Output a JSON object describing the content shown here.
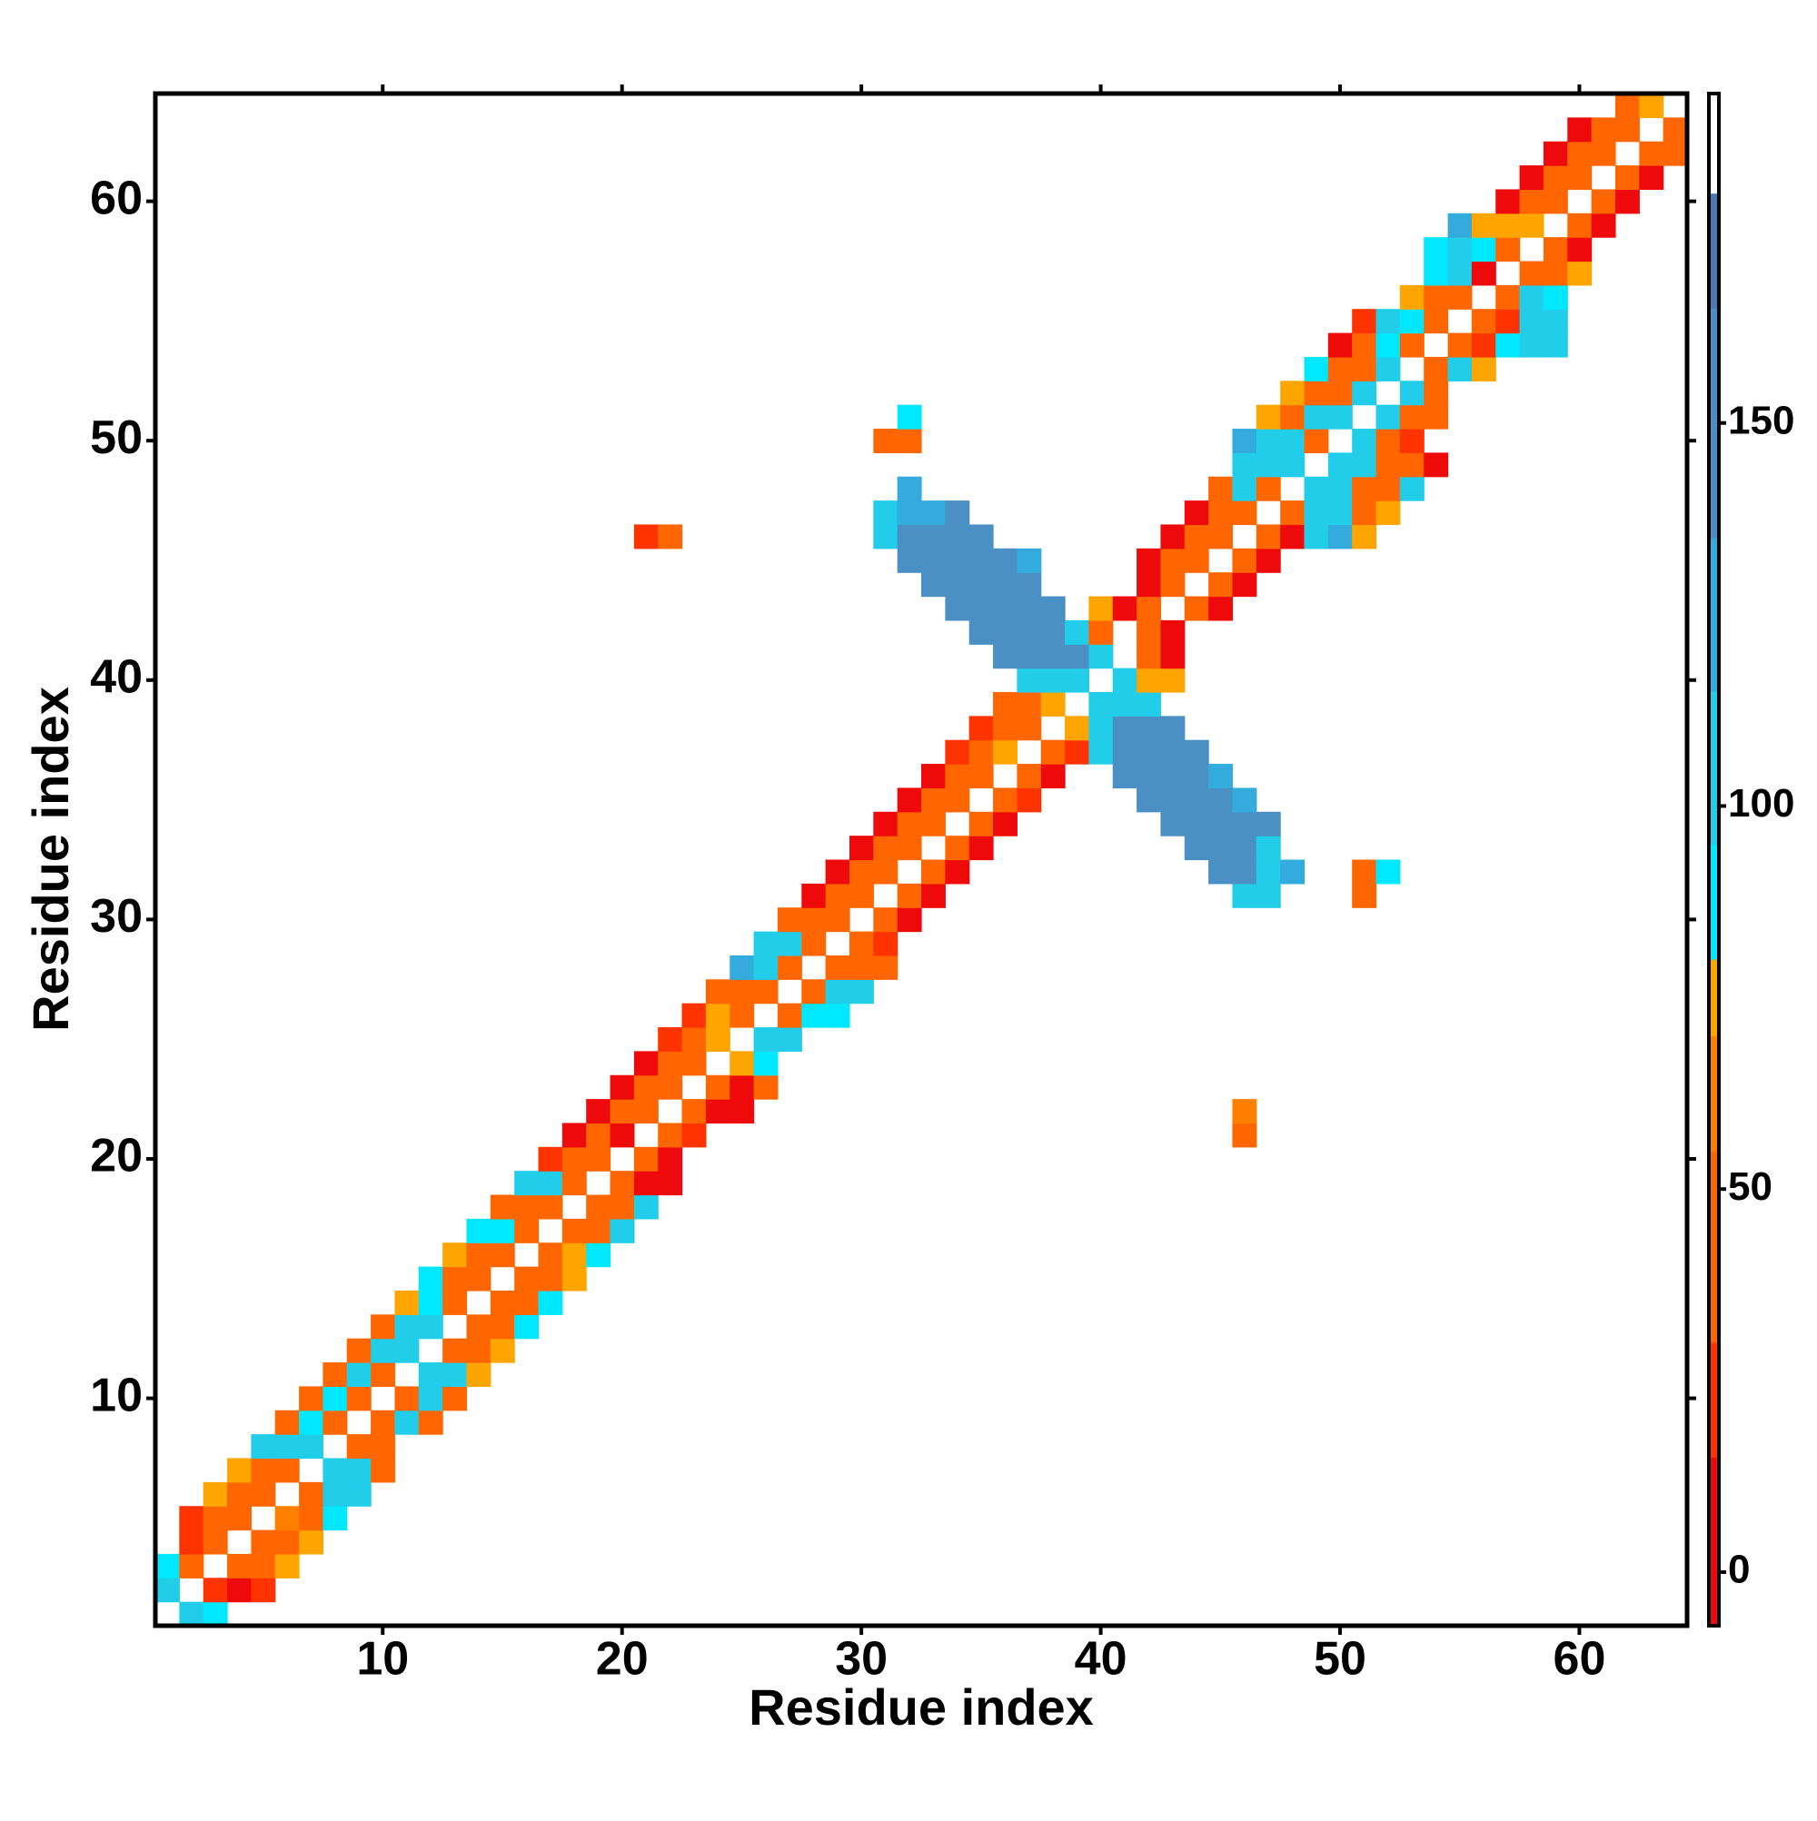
{
  "chart_data": {
    "type": "heatmap",
    "x_label": "Residue index",
    "y_label": "Residue index",
    "xlim": [
      0.5,
      64.5
    ],
    "ylim": [
      0.5,
      64.5
    ],
    "xticks": [
      10,
      20,
      30,
      40,
      50,
      60
    ],
    "yticks": [
      10,
      20,
      30,
      40,
      50,
      60
    ],
    "colorbar": {
      "lim": [
        -7,
        193
      ],
      "ticks": [
        0,
        50,
        100,
        150
      ],
      "bins": [
        {
          "from": -7,
          "to": 15,
          "color": "#ee0a0a"
        },
        {
          "from": 15,
          "to": 30,
          "color": "#ff3300"
        },
        {
          "from": 30,
          "to": 55,
          "color": "#ff6600"
        },
        {
          "from": 55,
          "to": 70,
          "color": "#ff8000"
        },
        {
          "from": 70,
          "to": 80,
          "color": "#ffa500"
        },
        {
          "from": 80,
          "to": 95,
          "color": "#00e8ff"
        },
        {
          "from": 95,
          "to": 115,
          "color": "#22cdea"
        },
        {
          "from": 115,
          "to": 135,
          "color": "#33abdc"
        },
        {
          "from": 135,
          "to": 165,
          "color": "#4a90c4"
        },
        {
          "from": 165,
          "to": 180,
          "color": "#4a78b0"
        },
        {
          "from": 180,
          "to": 193,
          "color": "#ffffff"
        }
      ]
    },
    "rows": [
      {
        "y": 1,
        "x0": 1,
        "values": [
          null,
          105,
          88
        ]
      },
      {
        "y": 2,
        "x0": 1,
        "values": [
          105,
          null,
          22,
          8,
          22
        ]
      },
      {
        "y": 3,
        "x0": 1,
        "values": [
          88,
          40,
          null,
          40,
          40,
          75
        ]
      },
      {
        "y": 4,
        "x0": 2,
        "values": [
          22,
          40,
          null,
          40,
          40,
          75
        ]
      },
      {
        "y": 5,
        "x0": 2,
        "values": [
          22,
          40,
          40,
          null,
          60,
          40,
          88
        ]
      },
      {
        "y": 6,
        "x0": 3,
        "values": [
          75,
          40,
          40,
          null,
          40,
          105,
          105
        ]
      },
      {
        "y": 7,
        "x0": 4,
        "values": [
          75,
          40,
          40,
          null,
          105,
          105,
          40
        ]
      },
      {
        "y": 8,
        "x0": 5,
        "values": [
          105,
          105,
          105,
          null,
          40,
          40
        ]
      },
      {
        "y": 9,
        "x0": 6,
        "values": [
          40,
          88,
          40,
          null,
          40,
          105,
          40
        ]
      },
      {
        "y": 10,
        "x0": 7,
        "values": [
          40,
          88,
          40,
          null,
          40,
          105,
          40
        ]
      },
      {
        "y": 11,
        "x0": 8,
        "values": [
          40,
          105,
          40,
          null,
          105,
          105,
          75
        ]
      },
      {
        "y": 12,
        "x0": 9,
        "values": [
          40,
          105,
          105,
          null,
          40,
          40,
          75
        ]
      },
      {
        "y": 13,
        "x0": 10,
        "values": [
          40,
          105,
          105,
          null,
          40,
          40,
          88
        ]
      },
      {
        "y": 14,
        "x0": 11,
        "values": [
          75,
          88,
          40,
          null,
          40,
          40,
          88
        ]
      },
      {
        "y": 15,
        "x0": 12,
        "values": [
          88,
          40,
          40,
          null,
          40,
          40,
          75
        ]
      },
      {
        "y": 16,
        "x0": 13,
        "values": [
          75,
          40,
          40,
          null,
          40,
          75,
          88
        ]
      },
      {
        "y": 17,
        "x0": 14,
        "values": [
          88,
          88,
          40,
          null,
          40,
          40,
          105
        ]
      },
      {
        "y": 18,
        "x0": 15,
        "values": [
          40,
          40,
          40,
          null,
          40,
          40,
          105
        ]
      },
      {
        "y": 19,
        "x0": 16,
        "values": [
          105,
          105,
          40,
          null,
          40,
          8,
          8
        ]
      },
      {
        "y": 20,
        "x0": 17,
        "values": [
          22,
          40,
          40,
          null,
          40,
          8
        ]
      },
      {
        "y": 21,
        "x0": 18,
        "values": [
          8,
          40,
          8,
          null,
          40,
          22
        ]
      },
      {
        "y": 21,
        "x0": 46,
        "values": [
          40
        ]
      },
      {
        "y": 22,
        "x0": 19,
        "values": [
          8,
          40,
          40,
          null,
          40,
          8,
          8
        ]
      },
      {
        "y": 22,
        "x0": 46,
        "values": [
          60
        ]
      },
      {
        "y": 23,
        "x0": 20,
        "values": [
          8,
          40,
          40,
          null,
          40,
          8,
          40
        ]
      },
      {
        "y": 24,
        "x0": 21,
        "values": [
          8,
          40,
          40,
          null,
          75,
          88
        ]
      },
      {
        "y": 25,
        "x0": 22,
        "values": [
          22,
          40,
          75,
          null,
          105,
          105
        ]
      },
      {
        "y": 26,
        "x0": 23,
        "values": [
          22,
          75,
          40,
          null,
          40,
          88,
          88
        ]
      },
      {
        "y": 27,
        "x0": 24,
        "values": [
          40,
          40,
          40,
          null,
          40,
          105,
          105
        ]
      },
      {
        "y": 28,
        "x0": 25,
        "values": [
          125,
          105,
          40,
          null,
          40,
          40,
          40
        ]
      },
      {
        "y": 29,
        "x0": 26,
        "values": [
          105,
          105,
          40,
          null,
          40,
          22
        ]
      },
      {
        "y": 30,
        "x0": 27,
        "values": [
          40,
          40,
          40,
          null,
          40,
          8
        ]
      },
      {
        "y": 31,
        "x0": 28,
        "values": [
          8,
          40,
          40,
          null,
          40,
          8
        ]
      },
      {
        "y": 31,
        "x0": 46,
        "values": [
          105,
          105
        ]
      },
      {
        "y": 31,
        "x0": 51,
        "values": [
          40
        ]
      },
      {
        "y": 32,
        "x0": 29,
        "values": [
          8,
          40,
          40,
          null,
          40,
          8
        ]
      },
      {
        "y": 32,
        "x0": 45,
        "values": [
          150,
          150,
          105,
          125
        ]
      },
      {
        "y": 32,
        "x0": 51,
        "values": [
          40,
          88
        ]
      },
      {
        "y": 33,
        "x0": 30,
        "values": [
          8,
          40,
          40,
          null,
          40,
          8
        ]
      },
      {
        "y": 33,
        "x0": 44,
        "values": [
          150,
          150,
          150,
          105
        ]
      },
      {
        "y": 34,
        "x0": 31,
        "values": [
          8,
          40,
          40,
          null,
          40,
          8
        ]
      },
      {
        "y": 34,
        "x0": 43,
        "values": [
          150,
          150,
          150,
          150,
          150
        ]
      },
      {
        "y": 35,
        "x0": 32,
        "values": [
          8,
          40,
          40,
          null,
          40,
          22
        ]
      },
      {
        "y": 35,
        "x0": 42,
        "values": [
          150,
          150,
          150,
          150,
          125
        ]
      },
      {
        "y": 36,
        "x0": 33,
        "values": [
          8,
          40,
          40,
          null,
          40,
          8
        ]
      },
      {
        "y": 36,
        "x0": 41,
        "values": [
          150,
          150,
          150,
          150,
          125
        ]
      },
      {
        "y": 37,
        "x0": 34,
        "values": [
          22,
          40,
          75,
          null,
          40,
          22
        ]
      },
      {
        "y": 37,
        "x0": 40,
        "values": [
          105,
          150,
          150,
          150,
          150
        ]
      },
      {
        "y": 38,
        "x0": 35,
        "values": [
          22,
          40,
          40,
          null,
          75,
          105,
          150,
          150,
          150
        ]
      },
      {
        "y": 39,
        "x0": 36,
        "values": [
          40,
          40,
          75,
          null,
          105,
          105,
          105
        ]
      },
      {
        "y": 40,
        "x0": 37,
        "values": [
          105,
          105,
          105,
          null,
          105,
          75,
          75
        ]
      },
      {
        "y": 41,
        "x0": 36,
        "values": [
          150,
          150,
          150,
          150,
          105,
          null,
          40,
          8
        ]
      },
      {
        "y": 42,
        "x0": 35,
        "values": [
          150,
          150,
          150,
          150,
          105,
          40,
          null,
          40,
          8
        ]
      },
      {
        "y": 43,
        "x0": 34,
        "values": [
          150,
          150,
          150,
          150,
          150,
          null,
          75,
          8,
          40,
          null,
          40,
          8
        ]
      },
      {
        "y": 44,
        "x0": 33,
        "values": [
          150,
          150,
          150,
          150,
          150,
          null,
          null,
          null,
          null,
          8,
          40,
          null,
          40,
          8
        ]
      },
      {
        "y": 45,
        "x0": 32,
        "values": [
          150,
          150,
          150,
          150,
          150,
          125
        ]
      },
      {
        "y": 45,
        "x0": 42,
        "values": [
          8,
          40,
          40,
          null,
          40,
          8
        ]
      },
      {
        "y": 46,
        "x0": 31,
        "values": [
          105,
          150,
          150,
          150,
          150
        ]
      },
      {
        "y": 46,
        "x0": 21,
        "values": [
          22,
          40
        ]
      },
      {
        "y": 46,
        "x0": 43,
        "values": [
          8,
          40,
          40,
          null,
          40,
          8,
          105,
          125,
          75
        ]
      },
      {
        "y": 47,
        "x0": 31,
        "values": [
          105,
          125,
          125,
          150
        ]
      },
      {
        "y": 47,
        "x0": 44,
        "values": [
          8,
          40,
          40,
          null,
          40,
          105,
          105,
          40,
          75
        ]
      },
      {
        "y": 48,
        "x0": 32,
        "values": [
          125
        ]
      },
      {
        "y": 48,
        "x0": 45,
        "values": [
          40,
          105,
          40,
          null,
          105,
          105,
          40,
          40,
          105
        ]
      },
      {
        "y": 49,
        "x0": 46,
        "values": [
          105,
          105,
          105,
          null,
          105,
          105,
          40,
          40,
          8
        ]
      },
      {
        "y": 50,
        "x0": 31,
        "values": [
          40,
          40
        ]
      },
      {
        "y": 50,
        "x0": 46,
        "values": [
          125,
          105,
          105,
          40,
          null,
          105,
          40,
          22
        ]
      },
      {
        "y": 51,
        "x0": 32,
        "values": [
          88
        ]
      },
      {
        "y": 51,
        "x0": 47,
        "values": [
          75,
          40,
          105,
          105,
          null,
          105,
          40,
          40
        ]
      },
      {
        "y": 52,
        "x0": 48,
        "values": [
          75,
          40,
          40,
          105,
          null,
          105,
          40
        ]
      },
      {
        "y": 53,
        "x0": 49,
        "values": [
          88,
          40,
          40,
          105,
          null,
          40,
          105,
          75
        ]
      },
      {
        "y": 54,
        "x0": 50,
        "values": [
          8,
          40,
          88,
          40,
          null,
          40,
          22,
          88,
          105,
          105
        ]
      },
      {
        "y": 55,
        "x0": 51,
        "values": [
          22,
          105,
          88,
          40,
          null,
          40,
          22,
          105,
          105
        ]
      },
      {
        "y": 56,
        "x0": 53,
        "values": [
          75,
          40,
          40,
          null,
          40,
          105,
          88
        ]
      },
      {
        "y": 57,
        "x0": 54,
        "values": [
          88,
          105,
          8,
          null,
          40,
          40,
          75
        ]
      },
      {
        "y": 58,
        "x0": 54,
        "values": [
          88,
          105,
          88,
          40,
          null,
          40,
          8
        ]
      },
      {
        "y": 59,
        "x0": 55,
        "values": [
          125,
          75,
          75,
          75,
          null,
          40,
          8
        ]
      },
      {
        "y": 60,
        "x0": 57,
        "values": [
          8,
          40,
          40,
          null,
          40,
          8
        ]
      },
      {
        "y": 61,
        "x0": 58,
        "values": [
          8,
          40,
          40,
          null,
          40,
          8
        ]
      },
      {
        "y": 62,
        "x0": 59,
        "values": [
          8,
          40,
          40,
          null,
          40,
          40
        ]
      },
      {
        "y": 63,
        "x0": 60,
        "values": [
          8,
          40,
          40,
          null,
          40
        ]
      },
      {
        "y": 64,
        "x0": 62,
        "values": [
          40,
          75
        ]
      }
    ]
  }
}
